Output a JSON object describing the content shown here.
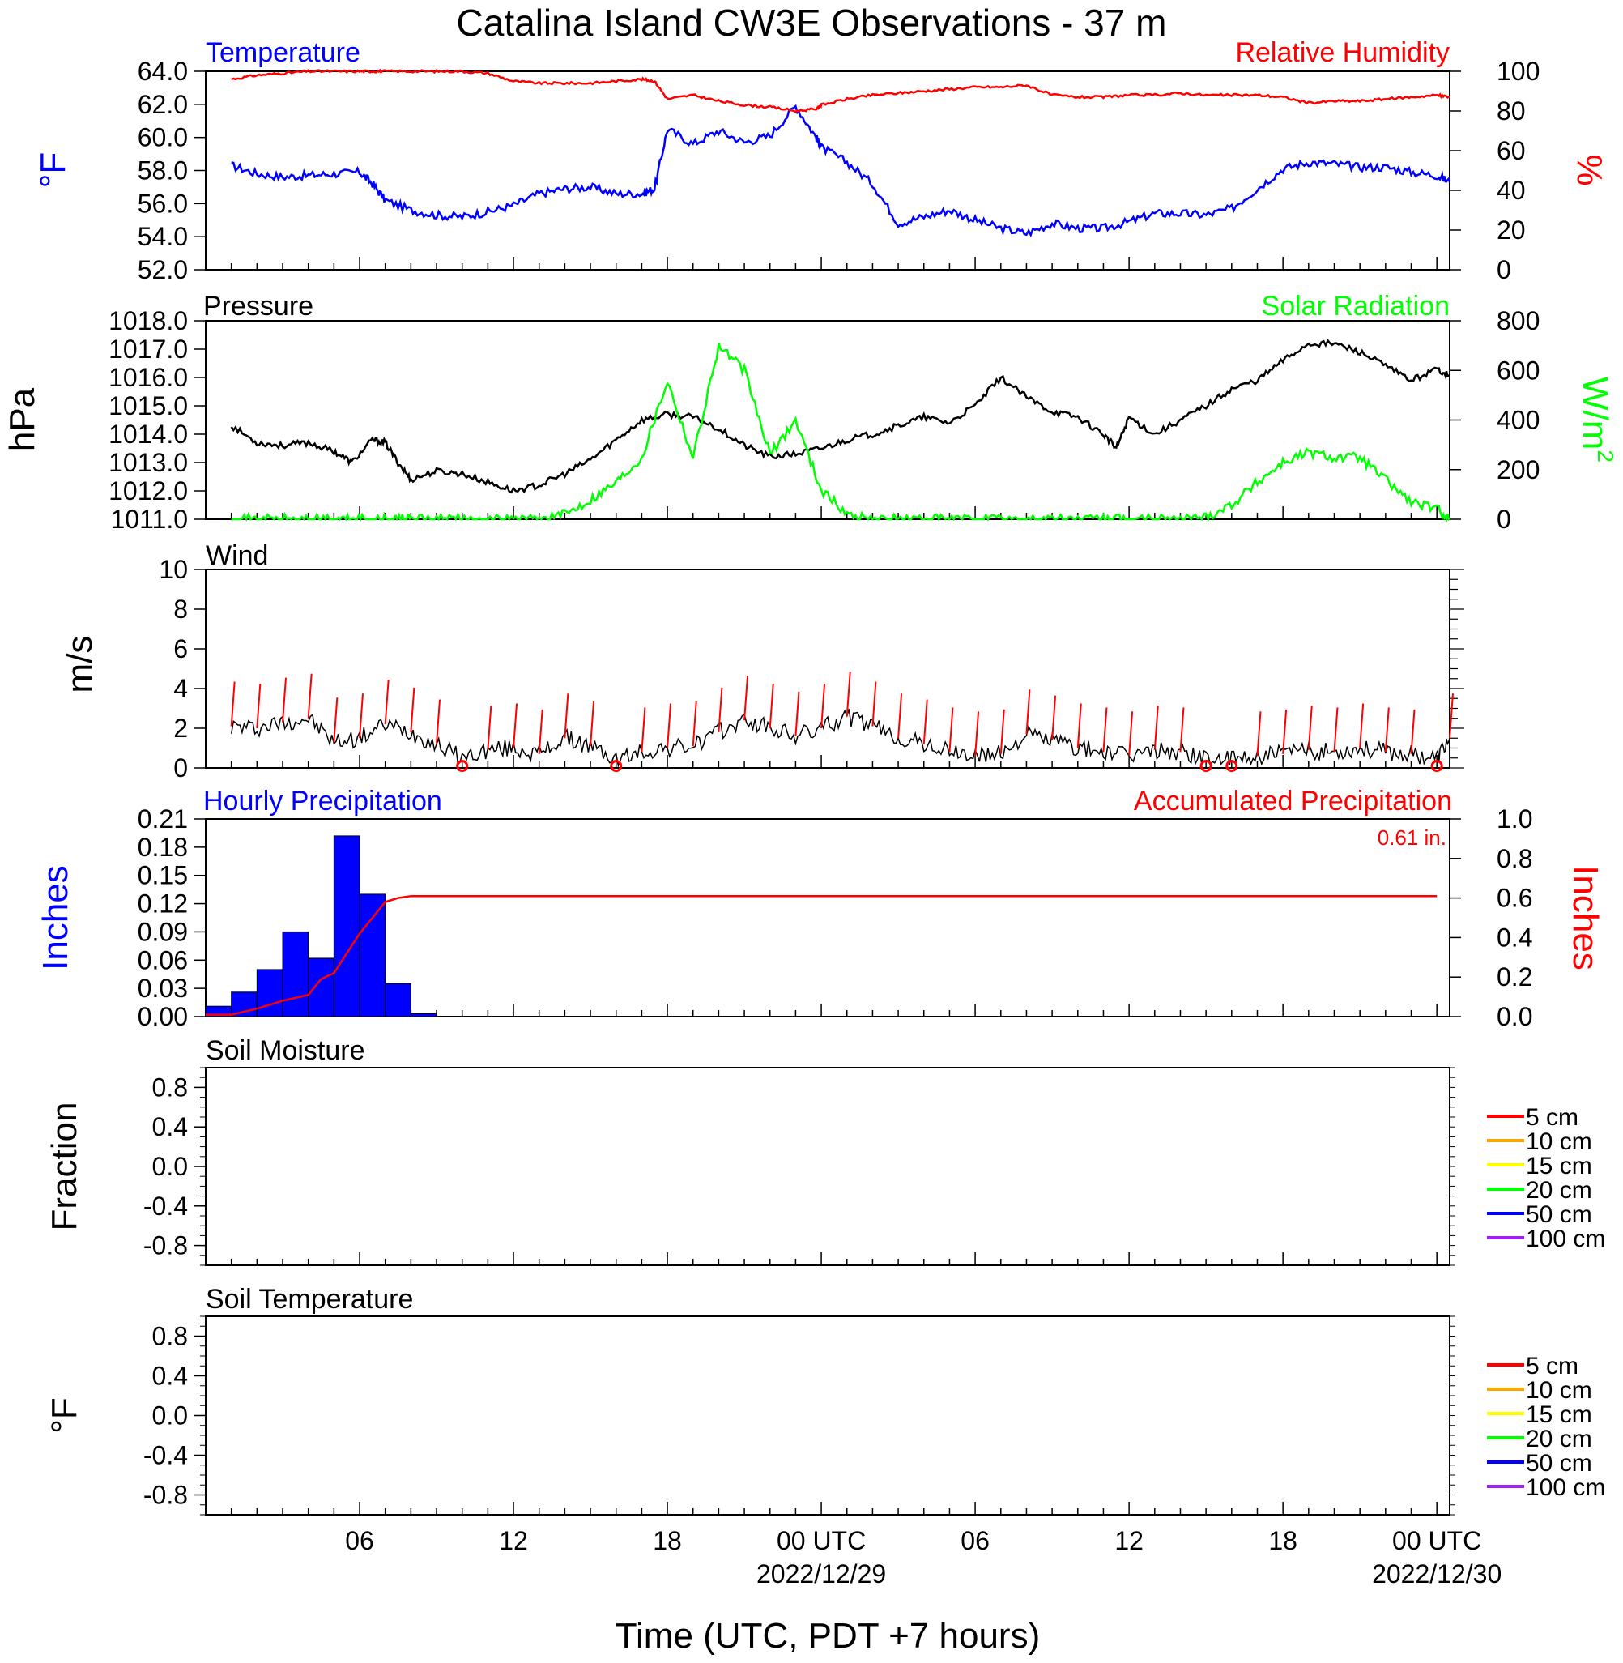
{
  "title": "Catalina Island CW3E Observations - 37 m",
  "xlabel": "Time (UTC, PDT +7 hours)",
  "x_ticks": [
    {
      "label": "06",
      "date": ""
    },
    {
      "label": "12",
      "date": ""
    },
    {
      "label": "18",
      "date": ""
    },
    {
      "label": "00 UTC",
      "date": "2022/12/29"
    },
    {
      "label": "06",
      "date": ""
    },
    {
      "label": "12",
      "date": ""
    },
    {
      "label": "18",
      "date": ""
    },
    {
      "label": "00 UTC",
      "date": "2022/12/30"
    }
  ],
  "colors": {
    "temperature": "#0000ff",
    "humidity": "#ff0000",
    "pressure": "#000000",
    "solar": "#00ff00",
    "wind": "#000000",
    "wind_barb": "#ff0000",
    "precip_bars": "#0000ff",
    "accum_line": "#ff0000"
  },
  "chart_data": [
    {
      "type": "line",
      "panel": "temperature-humidity",
      "left_title": "Temperature",
      "right_title": "Relative Humidity",
      "ylabel_left": "°F",
      "ylabel_right": "%",
      "ylim_left": [
        52,
        64
      ],
      "ylim_right": [
        0,
        100
      ],
      "yticks_left": [
        "52.0",
        "54.0",
        "56.0",
        "58.0",
        "60.0",
        "62.0",
        "64.0"
      ],
      "yticks_right": [
        "0",
        "20",
        "40",
        "60",
        "80",
        "100"
      ],
      "x_hours": [
        1,
        2,
        3,
        4,
        5,
        6,
        6.5,
        7,
        8,
        9,
        10,
        11,
        12,
        13,
        14,
        15,
        16,
        17,
        17.5,
        18,
        19,
        20,
        21,
        22,
        23,
        23.8,
        24,
        25,
        26,
        27,
        28,
        29,
        30,
        31,
        32,
        33,
        34,
        35,
        36,
        37,
        38,
        39,
        40,
        41,
        42,
        43,
        44,
        45,
        46,
        47,
        48,
        48.5
      ],
      "series": [
        {
          "name": "Temperature",
          "axis": "left",
          "values": [
            58.3,
            57.8,
            57.6,
            57.7,
            57.8,
            57.9,
            57.2,
            56.2,
            55.6,
            55.3,
            55.2,
            55.5,
            55.9,
            56.6,
            56.9,
            57.0,
            56.6,
            56.6,
            56.9,
            60.5,
            59.6,
            60.4,
            59.7,
            60.1,
            61.9,
            60.0,
            59.4,
            58.5,
            57.2,
            54.8,
            55.2,
            55.6,
            55.0,
            54.5,
            54.2,
            54.8,
            54.5,
            54.5,
            54.9,
            55.4,
            55.4,
            55.3,
            55.7,
            56.9,
            58.1,
            58.5,
            58.4,
            58.2,
            58.2,
            57.9,
            57.7,
            57.3
          ]
        },
        {
          "name": "Relative Humidity",
          "axis": "right",
          "values": [
            96,
            98,
            99,
            100,
            100,
            100,
            100,
            100,
            100,
            100,
            100,
            99,
            95,
            94,
            94,
            94,
            95,
            96,
            95,
            86,
            88,
            85,
            83,
            82,
            80,
            81,
            83,
            86,
            88,
            89,
            90,
            91,
            92,
            92,
            93,
            88,
            87,
            87,
            88,
            88,
            89,
            88,
            88,
            88,
            87,
            84,
            85,
            85,
            86,
            87,
            88,
            87
          ]
        }
      ]
    },
    {
      "type": "line",
      "panel": "pressure-solar",
      "left_title": "Pressure",
      "right_title": "Solar Radiation",
      "ylabel_left": "hPa",
      "ylabel_right": "W/m",
      "ylabel_right_sup": "2",
      "ylim_left": [
        1011,
        1018
      ],
      "ylim_right": [
        0,
        800
      ],
      "yticks_left": [
        "1011.0",
        "1012.0",
        "1013.0",
        "1014.0",
        "1015.0",
        "1016.0",
        "1017.0",
        "1018.0"
      ],
      "yticks_right": [
        "0",
        "200",
        "400",
        "600",
        "800"
      ],
      "x_hours": [
        1,
        2,
        3,
        4,
        5,
        5.7,
        6.5,
        7,
        7.5,
        8,
        9,
        10,
        11,
        12,
        13,
        14,
        15,
        16,
        17,
        18,
        19,
        20,
        21,
        22,
        23,
        24,
        25,
        26,
        27,
        28,
        29,
        30,
        31,
        32,
        33,
        34,
        35,
        35.5,
        36,
        37,
        38,
        39,
        40,
        41,
        42,
        43,
        44,
        45,
        46,
        47,
        48,
        48.5
      ],
      "series": [
        {
          "name": "Pressure",
          "axis": "left",
          "values": [
            1014.3,
            1013.7,
            1013.6,
            1013.7,
            1013.4,
            1013.0,
            1013.8,
            1013.7,
            1013.0,
            1012.4,
            1012.7,
            1012.6,
            1012.3,
            1012.0,
            1012.2,
            1012.6,
            1013.1,
            1013.8,
            1014.5,
            1014.7,
            1014.6,
            1014.2,
            1013.6,
            1013.2,
            1013.3,
            1013.5,
            1013.8,
            1014.0,
            1014.3,
            1014.6,
            1014.4,
            1015.0,
            1016.0,
            1015.3,
            1014.8,
            1014.6,
            1014.0,
            1013.5,
            1014.6,
            1014.0,
            1014.5,
            1015.0,
            1015.6,
            1015.9,
            1016.6,
            1017.2,
            1017.2,
            1016.9,
            1016.4,
            1015.9,
            1016.3,
            1016.1
          ]
        },
        {
          "name": "Solar Radiation",
          "axis": "right",
          "values": [
            0,
            0,
            0,
            0,
            0,
            0,
            0,
            0,
            0,
            0,
            0,
            0,
            0,
            0,
            0,
            20,
            80,
            150,
            250,
            560,
            250,
            700,
            600,
            260,
            400,
            120,
            20,
            0,
            0,
            0,
            0,
            0,
            0,
            0,
            0,
            0,
            0,
            0,
            0,
            0,
            0,
            10,
            60,
            150,
            230,
            270,
            250,
            250,
            160,
            70,
            40,
            5
          ]
        }
      ]
    },
    {
      "type": "line",
      "panel": "wind",
      "left_title": "Wind",
      "ylabel_left": "m/s",
      "ylim_left": [
        0,
        10
      ],
      "yticks_left": [
        "0",
        "2",
        "4",
        "6",
        "8",
        "10"
      ],
      "x_hours": [
        1,
        2,
        3,
        4,
        5,
        6,
        7,
        8,
        9,
        10,
        11,
        12,
        13,
        14,
        15,
        16,
        17,
        18,
        19,
        20,
        21,
        22,
        23,
        24,
        25,
        26,
        27,
        28,
        29,
        30,
        31,
        32,
        33,
        34,
        35,
        36,
        37,
        38,
        39,
        40,
        41,
        42,
        43,
        44,
        45,
        46,
        47,
        48,
        48.5
      ],
      "series": [
        {
          "name": "Wind",
          "axis": "left",
          "values": [
            2.1,
            2.0,
            2.3,
            2.5,
            1.3,
            1.5,
            2.2,
            1.8,
            1.2,
            0.5,
            0.9,
            1.0,
            0.7,
            1.5,
            1.1,
            0.4,
            0.8,
            1.0,
            1.1,
            1.8,
            2.4,
            2.0,
            1.6,
            2.0,
            2.6,
            2.1,
            1.5,
            1.2,
            0.8,
            0.6,
            0.7,
            1.7,
            1.4,
            1.0,
            0.8,
            0.6,
            0.9,
            0.8,
            0.5,
            0.4,
            0.6,
            0.7,
            0.9,
            0.8,
            1.0,
            0.8,
            0.7,
            0.5,
            1.5
          ]
        }
      ]
    },
    {
      "type": "bar",
      "panel": "precipitation",
      "left_title": "Hourly Precipitation",
      "right_title": "Accumulated Precipitation",
      "total_label": "0.61 in.",
      "ylabel_left": "Inches",
      "ylabel_right": "Inches",
      "ylim_left": [
        0,
        0.21
      ],
      "ylim_right": [
        0,
        1.0
      ],
      "yticks_left": [
        "0.00",
        "0.03",
        "0.06",
        "0.09",
        "0.12",
        "0.15",
        "0.18",
        "0.21"
      ],
      "yticks_right": [
        "0.0",
        "0.2",
        "0.4",
        "0.6",
        "0.8",
        "1.0"
      ],
      "hourly_bins_start": [
        1,
        2,
        3,
        4,
        5,
        6,
        7,
        8,
        9
      ],
      "hourly_values": [
        0.011,
        0.026,
        0.05,
        0.09,
        0.062,
        0.192,
        0.13,
        0.035,
        0.003
      ],
      "accum_x": [
        1,
        2,
        3,
        4,
        5,
        5.5,
        6,
        7,
        7.5,
        8,
        8.5,
        9,
        49
      ],
      "accum_values": [
        0.01,
        0.01,
        0.04,
        0.08,
        0.11,
        0.19,
        0.22,
        0.42,
        0.5,
        0.58,
        0.6,
        0.61,
        0.61
      ]
    },
    {
      "type": "line",
      "panel": "soil-moisture",
      "left_title": "Soil Moisture",
      "ylabel_left": "Fraction",
      "yticks_left": [
        "-0.8",
        "-0.4",
        "0.0",
        "0.4",
        "0.8"
      ],
      "legend": [
        "5 cm",
        "10 cm",
        "15 cm",
        "20 cm",
        "50 cm",
        "100 cm"
      ],
      "legend_colors": [
        "#ff0000",
        "#ffa500",
        "#ffff00",
        "#00ff00",
        "#0000ff",
        "#a020f0"
      ],
      "series": []
    },
    {
      "type": "line",
      "panel": "soil-temperature",
      "left_title": "Soil Temperature",
      "ylabel_left": "°F",
      "yticks_left": [
        "-0.8",
        "-0.4",
        "0.0",
        "0.4",
        "0.8"
      ],
      "legend": [
        "5 cm",
        "10 cm",
        "15 cm",
        "20 cm",
        "50 cm",
        "100 cm"
      ],
      "legend_colors": [
        "#ff0000",
        "#ffa500",
        "#ffff00",
        "#00ff00",
        "#0000ff",
        "#a020f0"
      ],
      "series": []
    }
  ]
}
